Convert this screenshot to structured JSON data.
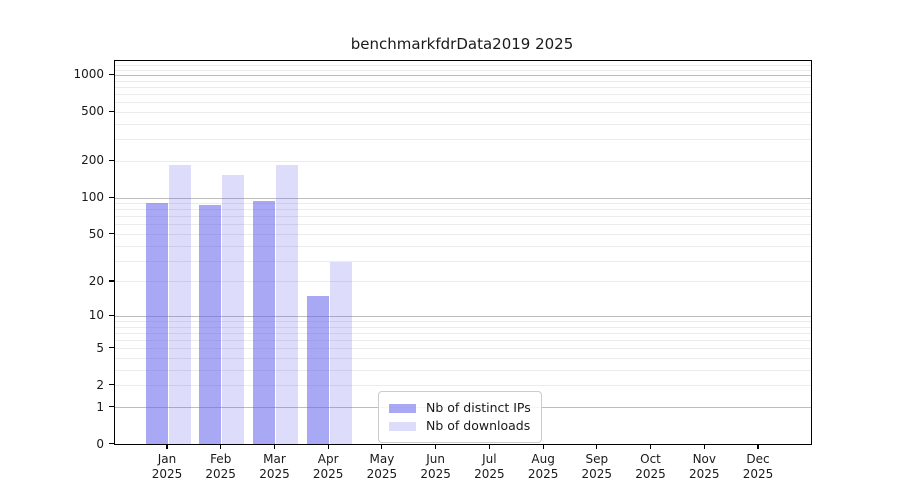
{
  "chart_data": {
    "type": "bar",
    "title": "benchmarkfdrData2019 2025",
    "categories": [
      "Jan",
      "Feb",
      "Mar",
      "Apr",
      "May",
      "Jun",
      "Jul",
      "Aug",
      "Sep",
      "Oct",
      "Nov",
      "Dec"
    ],
    "year_label": "2025",
    "series": [
      {
        "name": "Nb of distinct IPs",
        "values": [
          91,
          86,
          93,
          15,
          0,
          0,
          0,
          0,
          0,
          0,
          0,
          0
        ]
      },
      {
        "name": "Nb of downloads",
        "values": [
          183,
          152,
          186,
          29,
          0,
          0,
          0,
          0,
          0,
          0,
          0,
          0
        ]
      }
    ],
    "yscale": "log(1+x)",
    "yticks": [
      0,
      1,
      2,
      5,
      10,
      20,
      50,
      100,
      200,
      500,
      1000
    ],
    "ylim": [
      0,
      1280
    ],
    "grid": "horizontal",
    "gridlines_minor": [
      2,
      3,
      4,
      5,
      6,
      7,
      8,
      9,
      20,
      30,
      40,
      50,
      60,
      70,
      80,
      90,
      200,
      300,
      400,
      500,
      600,
      700,
      800,
      900,
      1100,
      1200
    ],
    "gridlines_major": [
      1,
      10,
      100,
      1000
    ],
    "legend_position": "inside-bottom-center",
    "colors": {
      "bar_ips": "rgba(102,102,238,0.57)",
      "bar_downloads": "rgba(102,102,238,0.22)",
      "grid_minor": "#ebebeb",
      "grid_major": "#bdbdbd",
      "text": "#1a1a1a",
      "spine": "#000000",
      "legend_border": "#cccccc"
    }
  }
}
